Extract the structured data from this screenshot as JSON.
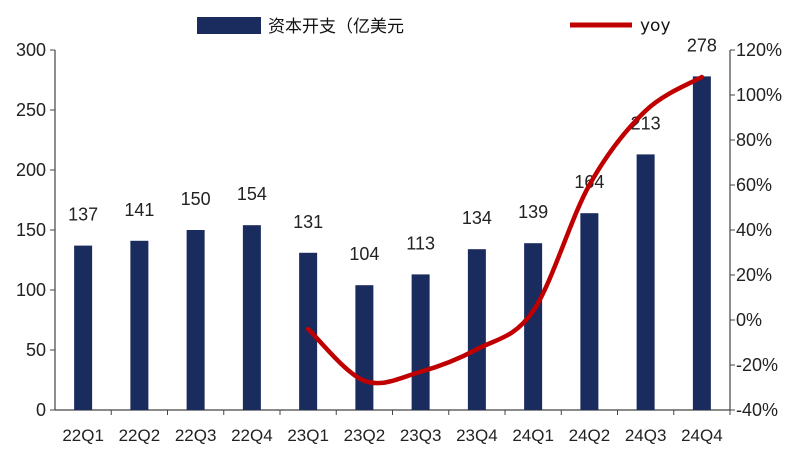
{
  "chart_data": {
    "type": "bar",
    "categories": [
      "22Q1",
      "22Q2",
      "22Q3",
      "22Q4",
      "23Q1",
      "23Q2",
      "23Q3",
      "23Q4",
      "24Q1",
      "24Q2",
      "24Q3",
      "24Q4"
    ],
    "series": [
      {
        "name": "资本开支（亿美元",
        "type": "bar",
        "axis": "left",
        "color": "#1a2b5e",
        "values": [
          137,
          141,
          150,
          154,
          131,
          104,
          113,
          134,
          139,
          164,
          213,
          278
        ]
      },
      {
        "name": "yoy",
        "type": "line",
        "axis": "right",
        "color": "#c00000",
        "values": [
          null,
          null,
          null,
          null,
          -4,
          -27,
          -23,
          -13,
          4,
          60,
          93,
          108
        ]
      }
    ],
    "data_labels": [
      "137",
      "141",
      "150",
      "154",
      "131",
      "104",
      "113",
      "134",
      "139",
      "164",
      "213",
      "278"
    ],
    "y_left": {
      "ylim": [
        0,
        300
      ],
      "ticks": [
        "0",
        "50",
        "100",
        "150",
        "200",
        "250",
        "300"
      ]
    },
    "y_right": {
      "ylim": [
        -40,
        120
      ],
      "ticks": [
        "-40%",
        "-20%",
        "0%",
        "20%",
        "40%",
        "60%",
        "80%",
        "100%",
        "120%"
      ]
    },
    "legend_position": "top",
    "grid": false
  }
}
